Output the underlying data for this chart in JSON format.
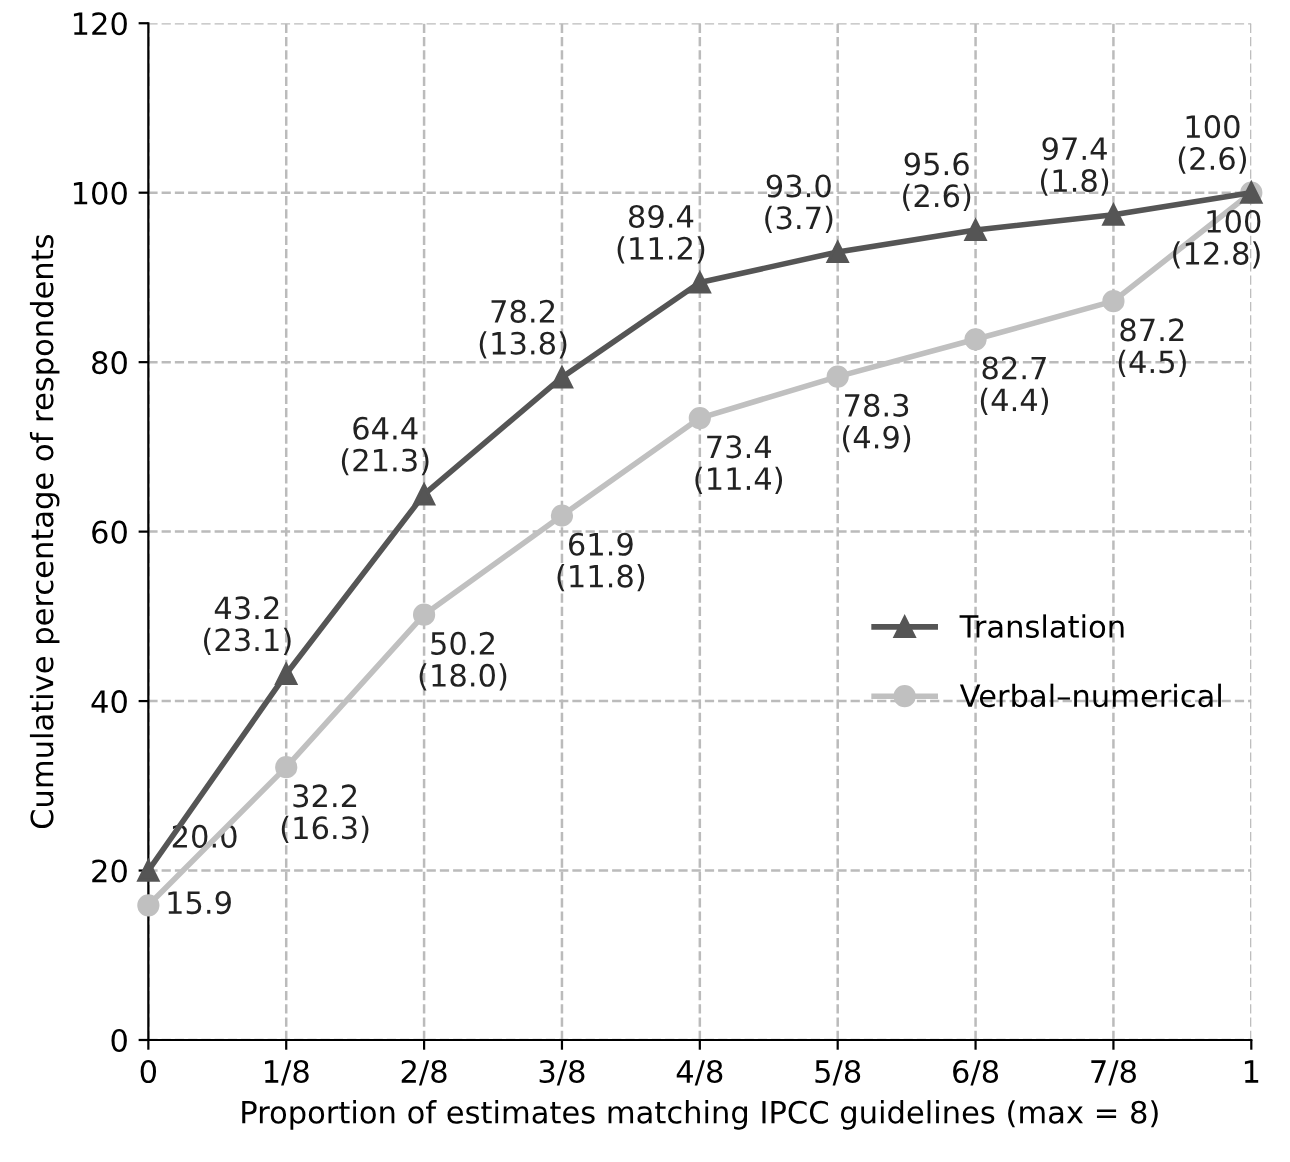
{
  "chart_data": {
    "type": "line",
    "xlabel": "Proportion of estimates matching IPCC guidelines (max = 8)",
    "ylabel": "Cumulative percentage of respondents",
    "categories": [
      "0",
      "1/8",
      "2/8",
      "3/8",
      "4/8",
      "5/8",
      "6/8",
      "7/8",
      "1"
    ],
    "series": [
      {
        "name": "Translation",
        "color": "#555555",
        "marker": "triangle",
        "values": [
          20.0,
          43.2,
          64.4,
          78.2,
          89.4,
          93.0,
          95.6,
          97.4,
          100
        ],
        "value_labels": [
          "20.0",
          "43.2\n(23.1)",
          "64.4\n(21.3)",
          "78.2\n(13.8)",
          "89.4\n(11.2)",
          "93.0\n(3.7)",
          "95.6\n(2.6)",
          "97.4\n(1.8)",
          "100\n(2.6)"
        ]
      },
      {
        "name": "Verbal–numerical",
        "color": "#c0c0c0",
        "marker": "circle",
        "values": [
          15.9,
          32.2,
          50.2,
          61.9,
          73.4,
          78.3,
          82.7,
          87.2,
          100
        ],
        "value_labels": [
          "15.9",
          "32.2\n(16.3)",
          "50.2\n(18.0)",
          "61.9\n(11.8)",
          "73.4\n(11.4)",
          "78.3\n(4.9)",
          "82.7\n(4.4)",
          "87.2\n(4.5)",
          "100\n(12.8)"
        ]
      }
    ],
    "ylim": [
      0,
      120
    ],
    "yticks": [
      0,
      20,
      40,
      60,
      80,
      100,
      120
    ],
    "grid": true,
    "legend": "right",
    "line_style": "solid"
  }
}
